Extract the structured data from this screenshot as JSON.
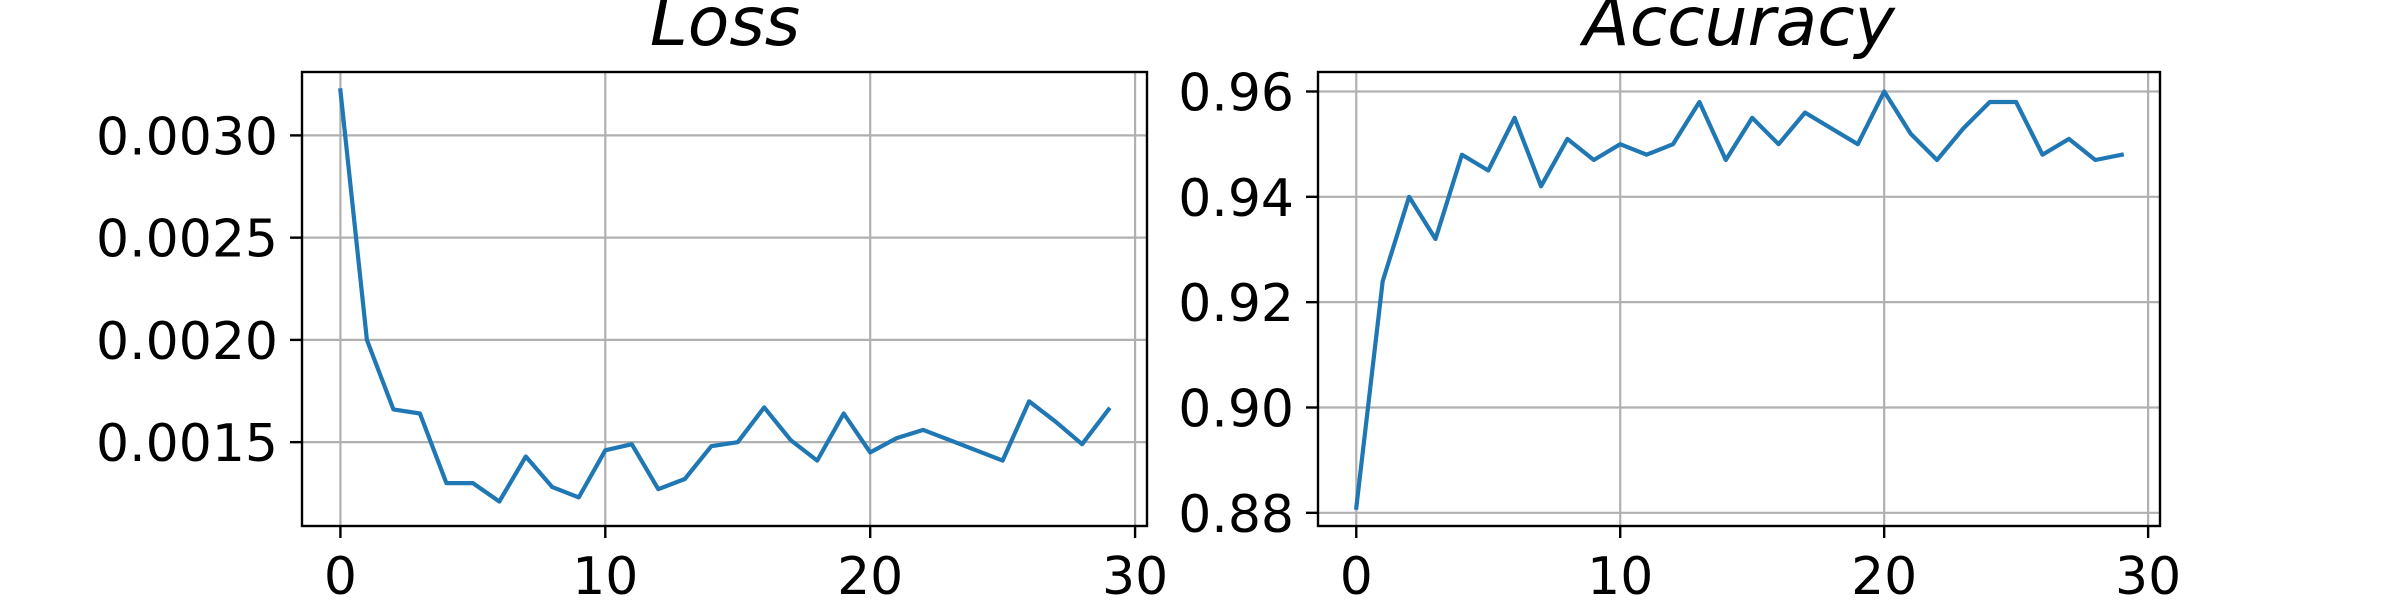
{
  "colors": {
    "series": "#1f77b4"
  },
  "chart_data": [
    {
      "type": "line",
      "title": "Loss",
      "xlabel": "",
      "ylabel": "",
      "grid": true,
      "xlim": [
        -1.45,
        30.45
      ],
      "ylim": [
        0.00109,
        0.00331
      ],
      "xticks": [
        0,
        10,
        20,
        30
      ],
      "xtick_labels": [
        "0",
        "10",
        "20",
        "30"
      ],
      "yticks": [
        0.0015,
        0.002,
        0.0025,
        0.003
      ],
      "ytick_labels": [
        "0.0015",
        "0.0020",
        "0.0025",
        "0.0030"
      ],
      "series": [
        {
          "x": [
            0,
            1,
            2,
            3,
            4,
            5,
            6,
            7,
            8,
            9,
            10,
            11,
            12,
            13,
            14,
            15,
            16,
            17,
            18,
            19,
            20,
            21,
            22,
            23,
            24,
            25,
            26,
            27,
            28,
            29
          ],
          "values": [
            0.00322,
            0.002,
            0.00166,
            0.00164,
            0.0013,
            0.0013,
            0.00121,
            0.00143,
            0.00128,
            0.00123,
            0.00146,
            0.00149,
            0.00127,
            0.00132,
            0.00148,
            0.0015,
            0.00167,
            0.00151,
            0.00141,
            0.00164,
            0.00145,
            0.00152,
            0.00156,
            0.00151,
            0.00146,
            0.00141,
            0.0017,
            0.0016,
            0.00149,
            0.00166
          ]
        }
      ]
    },
    {
      "type": "line",
      "title": "Accuracy",
      "xlabel": "",
      "ylabel": "",
      "grid": true,
      "xlim": [
        -1.45,
        30.45
      ],
      "ylim": [
        0.8775,
        0.9637
      ],
      "xticks": [
        0,
        10,
        20,
        30
      ],
      "xtick_labels": [
        "0",
        "10",
        "20",
        "30"
      ],
      "yticks": [
        0.88,
        0.9,
        0.92,
        0.94,
        0.96
      ],
      "ytick_labels": [
        "0.88",
        "0.90",
        "0.92",
        "0.94",
        "0.96"
      ],
      "series": [
        {
          "x": [
            0,
            1,
            2,
            3,
            4,
            5,
            6,
            7,
            8,
            9,
            10,
            11,
            12,
            13,
            14,
            15,
            16,
            17,
            18,
            19,
            20,
            21,
            22,
            23,
            24,
            25,
            26,
            27,
            28,
            29
          ],
          "values": [
            0.881,
            0.924,
            0.94,
            0.932,
            0.948,
            0.945,
            0.955,
            0.942,
            0.951,
            0.947,
            0.95,
            0.948,
            0.95,
            0.958,
            0.947,
            0.955,
            0.95,
            0.956,
            0.953,
            0.95,
            0.96,
            0.952,
            0.947,
            0.953,
            0.958,
            0.958,
            0.948,
            0.951,
            0.947,
            0.948
          ]
        }
      ]
    }
  ]
}
